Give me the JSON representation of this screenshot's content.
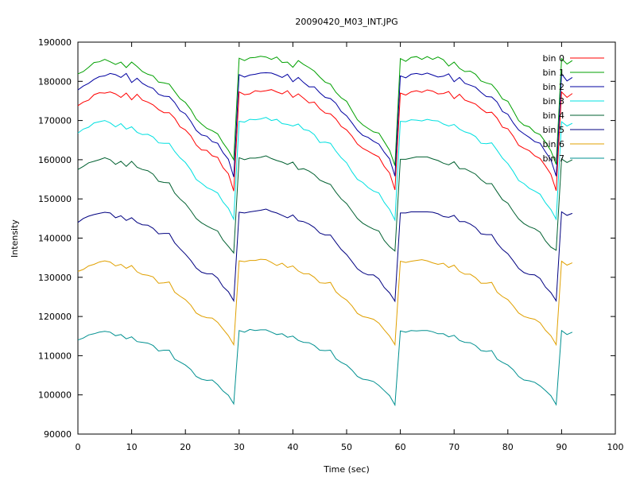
{
  "chart_data": {
    "type": "line",
    "title": "20090420_M03_INT.JPG",
    "xlabel": "Time (sec)",
    "ylabel": "Intensity",
    "xlim": [
      0,
      100
    ],
    "ylim": [
      90000,
      190000
    ],
    "x_ticks": [
      "0",
      "10",
      "20",
      "30",
      "40",
      "50",
      "60",
      "70",
      "80",
      "90",
      "100"
    ],
    "y_ticks": [
      "90000",
      "100000",
      "110000",
      "120000",
      "130000",
      "140000",
      "150000",
      "160000",
      "170000",
      "180000",
      "190000"
    ],
    "grid": false,
    "legend_position": "top-right",
    "x": [
      0,
      1,
      2,
      3,
      4,
      5,
      6,
      7,
      8,
      9,
      10,
      11,
      12,
      13,
      14,
      15,
      16,
      17,
      18,
      19,
      20,
      21,
      22,
      23,
      24,
      25,
      26,
      27,
      28,
      29,
      30,
      31,
      32,
      33,
      34,
      35,
      36,
      37,
      38,
      39,
      40,
      41,
      42,
      43,
      44,
      45,
      46,
      47,
      48,
      49,
      50,
      51,
      52,
      53,
      54,
      55,
      56,
      57,
      58,
      59,
      60,
      61,
      62,
      63,
      64,
      65,
      66,
      67,
      68,
      69,
      70,
      71,
      72,
      73,
      74,
      75,
      76,
      77,
      78,
      79,
      80,
      81,
      82,
      83,
      84,
      85,
      86,
      87,
      88,
      89,
      90,
      91,
      92
    ],
    "series": [
      {
        "name": "bin 0",
        "color": "#ff0000",
        "values": [
          173800,
          174700,
          175200,
          176600,
          177100,
          177000,
          177300,
          176800,
          175900,
          177000,
          175300,
          176700,
          175200,
          174700,
          174000,
          172800,
          172000,
          172000,
          170600,
          168400,
          167600,
          166100,
          163800,
          162500,
          162400,
          161000,
          160600,
          158000,
          156400,
          152000,
          177300,
          176600,
          176800,
          177600,
          177400,
          177600,
          177900,
          177300,
          176800,
          177600,
          175900,
          176800,
          175700,
          174500,
          174700,
          173000,
          171900,
          171700,
          170400,
          168500,
          167600,
          166000,
          164000,
          162900,
          162200,
          161400,
          160700,
          158300,
          156600,
          152300,
          177000,
          176500,
          177300,
          177600,
          177200,
          177800,
          177500,
          176800,
          176900,
          177400,
          175600,
          176700,
          175200,
          174700,
          174200,
          173000,
          172000,
          172100,
          170600,
          168300,
          167900,
          166000,
          163700,
          162900,
          162300,
          161000,
          160300,
          158400,
          156300,
          152100,
          177300,
          175900,
          176900
        ]
      },
      {
        "name": "bin 1",
        "color": "#00a000",
        "values": [
          181900,
          182500,
          183600,
          184800,
          185000,
          185600,
          185000,
          184300,
          184900,
          183500,
          184900,
          183800,
          182500,
          181800,
          181400,
          179800,
          179600,
          179300,
          177400,
          175600,
          174600,
          172800,
          170400,
          169100,
          168000,
          167400,
          166600,
          164300,
          162400,
          160000,
          185900,
          185300,
          186000,
          186100,
          186400,
          186200,
          185600,
          186200,
          184800,
          184900,
          183600,
          185300,
          184300,
          183500,
          182600,
          181100,
          179800,
          179300,
          177200,
          175800,
          174900,
          172500,
          170200,
          168900,
          168000,
          167100,
          166800,
          164600,
          162400,
          158500,
          185800,
          185100,
          186100,
          186300,
          185600,
          186300,
          185600,
          186200,
          185500,
          183900,
          184900,
          183300,
          182500,
          182600,
          181800,
          180100,
          179600,
          179200,
          177600,
          175500,
          174900,
          172500,
          170000,
          168800,
          168400,
          167000,
          166400,
          164500,
          162300,
          158800,
          185800,
          184400,
          185300
        ]
      },
      {
        "name": "bin 2",
        "color": "#0000a0",
        "values": [
          177800,
          178800,
          179500,
          180500,
          181200,
          181400,
          182000,
          181700,
          181000,
          182000,
          179700,
          180800,
          179500,
          178700,
          178200,
          176700,
          176200,
          176100,
          174600,
          172500,
          171700,
          169800,
          167500,
          166300,
          166000,
          164600,
          164200,
          161800,
          160100,
          155600,
          181700,
          181100,
          181600,
          181800,
          182100,
          182200,
          182100,
          181600,
          181000,
          181800,
          179900,
          181000,
          179700,
          178600,
          178600,
          177100,
          175900,
          175600,
          174400,
          172300,
          171200,
          169400,
          167500,
          166200,
          165700,
          164700,
          164000,
          161900,
          160200,
          155800,
          181400,
          180900,
          181800,
          182000,
          181700,
          182100,
          181600,
          181100,
          181300,
          181900,
          179900,
          181000,
          179500,
          179000,
          178500,
          177200,
          176100,
          176000,
          174700,
          172300,
          171600,
          169400,
          167600,
          166600,
          165700,
          164600,
          164200,
          162000,
          160000,
          155800,
          181900,
          180100,
          181000
        ]
      },
      {
        "name": "bin 3",
        "color": "#00e0e0",
        "values": [
          166800,
          167800,
          168300,
          169400,
          169700,
          170000,
          169400,
          168400,
          169200,
          167800,
          168400,
          167000,
          166400,
          166500,
          165800,
          164300,
          164200,
          164200,
          162100,
          160500,
          159300,
          157400,
          155000,
          154000,
          152900,
          152300,
          151500,
          149200,
          147600,
          144800,
          169800,
          169600,
          170300,
          170200,
          170400,
          170800,
          170000,
          170300,
          169200,
          169000,
          168600,
          169100,
          167700,
          167400,
          166400,
          164400,
          164500,
          164200,
          162200,
          160500,
          159200,
          156900,
          155000,
          154200,
          152900,
          152000,
          151500,
          149100,
          147300,
          144600,
          169800,
          169700,
          170200,
          170100,
          169900,
          170300,
          170000,
          169900,
          169100,
          168600,
          169000,
          167800,
          167100,
          166700,
          165900,
          164200,
          164100,
          164300,
          162400,
          160400,
          159000,
          157000,
          154700,
          153900,
          152700,
          152000,
          151200,
          149000,
          147300,
          144800,
          169700,
          168600,
          169300
        ]
      },
      {
        "name": "bin 4",
        "color": "#006030",
        "values": [
          157500,
          158300,
          159200,
          159600,
          160000,
          160500,
          160000,
          158800,
          159600,
          158300,
          159600,
          158100,
          157500,
          157200,
          156300,
          154500,
          154200,
          154100,
          151500,
          150000,
          148800,
          147000,
          145000,
          143900,
          143100,
          142400,
          141800,
          139500,
          137900,
          136200,
          160500,
          160000,
          160400,
          160400,
          160600,
          161000,
          160300,
          159800,
          159400,
          158800,
          159400,
          157500,
          157700,
          157100,
          156200,
          154800,
          154200,
          153700,
          151700,
          150000,
          148800,
          146900,
          145000,
          143800,
          143000,
          142300,
          141800,
          139400,
          137800,
          136700,
          160100,
          160100,
          160400,
          160700,
          160700,
          160700,
          160200,
          159800,
          159100,
          158700,
          159500,
          157700,
          157700,
          157000,
          156300,
          154900,
          153900,
          153900,
          151800,
          149800,
          148900,
          146800,
          144900,
          143700,
          142900,
          142400,
          141500,
          139300,
          137700,
          136900,
          160200,
          159300,
          160000
        ]
      },
      {
        "name": "bin 5",
        "color": "#000080",
        "values": [
          144000,
          145000,
          145600,
          146000,
          146300,
          146600,
          146400,
          145200,
          145700,
          144500,
          145200,
          144000,
          143400,
          143300,
          142500,
          141100,
          141200,
          141200,
          138800,
          137300,
          135900,
          134300,
          132400,
          131300,
          130900,
          130900,
          129800,
          127600,
          126300,
          124000,
          146600,
          146400,
          146700,
          146900,
          147100,
          147400,
          146800,
          146400,
          145800,
          145200,
          145900,
          144400,
          144200,
          143600,
          142700,
          141300,
          140800,
          140800,
          138900,
          137100,
          135800,
          134000,
          132200,
          131200,
          130600,
          130600,
          129600,
          127400,
          126000,
          123900,
          146400,
          146400,
          146700,
          146700,
          146700,
          146700,
          146600,
          146200,
          145500,
          145300,
          145800,
          144200,
          144200,
          143600,
          142700,
          141100,
          140900,
          140900,
          138700,
          137100,
          136000,
          134200,
          132300,
          131200,
          130700,
          130600,
          129700,
          127500,
          126100,
          124000,
          146700,
          145800,
          146300
        ]
      },
      {
        "name": "bin 6",
        "color": "#e0a000",
        "values": [
          131500,
          132000,
          132900,
          133300,
          133900,
          134200,
          133900,
          132900,
          133300,
          132300,
          133000,
          131400,
          130700,
          130500,
          130100,
          128500,
          128600,
          128800,
          126200,
          125200,
          124300,
          122900,
          120900,
          120100,
          119700,
          119600,
          118500,
          116800,
          115100,
          112800,
          134200,
          134000,
          134300,
          134300,
          134600,
          134500,
          133800,
          133000,
          133600,
          132500,
          132900,
          131600,
          130900,
          130900,
          130000,
          128600,
          128500,
          128700,
          126300,
          125100,
          124200,
          122700,
          120800,
          120000,
          119700,
          119300,
          118300,
          116600,
          115000,
          112800,
          134100,
          133800,
          134100,
          134300,
          134500,
          134200,
          133700,
          133300,
          133600,
          132500,
          133100,
          131500,
          130800,
          130800,
          129900,
          128500,
          128500,
          128700,
          126200,
          125100,
          124300,
          122700,
          120900,
          120000,
          119600,
          119300,
          118400,
          116500,
          115100,
          112800,
          134100,
          133100,
          133700
        ]
      },
      {
        "name": "bin 7",
        "color": "#009090",
        "values": [
          114000,
          114500,
          115300,
          115600,
          116000,
          116200,
          116000,
          115100,
          115400,
          114300,
          114800,
          113600,
          113400,
          113200,
          112600,
          111200,
          111400,
          111400,
          109100,
          108400,
          107600,
          106500,
          104700,
          104000,
          103700,
          103800,
          102600,
          101000,
          99900,
          97700,
          116400,
          116000,
          116700,
          116400,
          116600,
          116600,
          116000,
          115400,
          115600,
          114700,
          115000,
          113900,
          113400,
          113300,
          112600,
          111400,
          111300,
          111400,
          109200,
          108300,
          107600,
          106300,
          104700,
          104000,
          103800,
          103400,
          102400,
          101100,
          99800,
          97400,
          116300,
          116000,
          116400,
          116300,
          116400,
          116400,
          116100,
          115600,
          115600,
          114800,
          115200,
          113900,
          113400,
          113300,
          112600,
          111300,
          111100,
          111300,
          109100,
          108300,
          107600,
          106400,
          104700,
          103800,
          103600,
          103200,
          102300,
          101100,
          99800,
          97500,
          116400,
          115400,
          116000
        ]
      }
    ]
  }
}
